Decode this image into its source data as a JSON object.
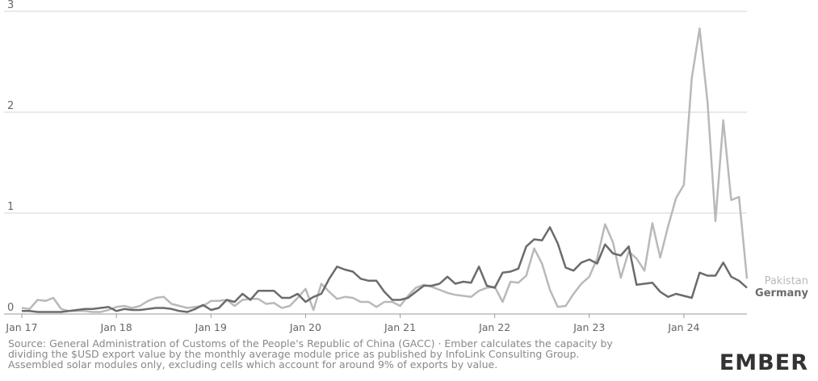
{
  "chart_data": {
    "type": "line",
    "categories": [
      "Jan 17",
      null,
      null,
      null,
      null,
      null,
      null,
      null,
      null,
      null,
      null,
      null,
      "Jan 18",
      null,
      null,
      null,
      null,
      null,
      null,
      null,
      null,
      null,
      null,
      null,
      "Jan 19",
      null,
      null,
      null,
      null,
      null,
      null,
      null,
      null,
      null,
      null,
      null,
      "Jan 20",
      null,
      null,
      null,
      null,
      null,
      null,
      null,
      null,
      null,
      null,
      null,
      "Jan 21",
      null,
      null,
      null,
      null,
      null,
      null,
      null,
      null,
      null,
      null,
      null,
      "Jan 22",
      null,
      null,
      null,
      null,
      null,
      null,
      null,
      null,
      null,
      null,
      null,
      "Jan 23",
      null,
      null,
      null,
      null,
      null,
      null,
      null,
      null,
      null,
      null,
      null,
      "Jan 24",
      null,
      null,
      null,
      null,
      null,
      null,
      null,
      null
    ],
    "series": [
      {
        "name": "Pakistan",
        "color": "#b9b9b9",
        "values": [
          0.06,
          0.05,
          0.14,
          0.13,
          0.16,
          0.05,
          0.03,
          0.03,
          0.03,
          0.02,
          0.02,
          0.04,
          0.07,
          0.08,
          0.06,
          0.08,
          0.13,
          0.16,
          0.17,
          0.1,
          0.08,
          0.06,
          0.07,
          0.08,
          0.13,
          0.13,
          0.14,
          0.08,
          0.14,
          0.15,
          0.15,
          0.1,
          0.11,
          0.06,
          0.08,
          0.16,
          0.25,
          0.04,
          0.3,
          0.22,
          0.15,
          0.17,
          0.16,
          0.12,
          0.12,
          0.07,
          0.12,
          0.12,
          0.08,
          0.18,
          0.26,
          0.29,
          0.27,
          0.24,
          0.21,
          0.19,
          0.18,
          0.17,
          0.23,
          0.26,
          0.27,
          0.12,
          0.32,
          0.31,
          0.38,
          0.65,
          0.5,
          0.24,
          0.07,
          0.08,
          0.2,
          0.3,
          0.37,
          0.55,
          0.89,
          0.71,
          0.36,
          0.62,
          0.55,
          0.43,
          0.9,
          0.56,
          0.87,
          1.15,
          1.28,
          2.34,
          2.83,
          2.1,
          0.92,
          1.92,
          1.13,
          1.16,
          0.35
        ]
      },
      {
        "name": "Germany",
        "color": "#6b6b6b",
        "values": [
          0.03,
          0.03,
          0.02,
          0.02,
          0.02,
          0.02,
          0.03,
          0.04,
          0.05,
          0.05,
          0.06,
          0.07,
          0.03,
          0.05,
          0.04,
          0.04,
          0.05,
          0.06,
          0.06,
          0.05,
          0.03,
          0.02,
          0.05,
          0.09,
          0.04,
          0.06,
          0.14,
          0.12,
          0.2,
          0.14,
          0.23,
          0.23,
          0.23,
          0.16,
          0.16,
          0.2,
          0.12,
          0.17,
          0.2,
          0.35,
          0.47,
          0.44,
          0.42,
          0.35,
          0.33,
          0.33,
          0.22,
          0.14,
          0.14,
          0.16,
          0.22,
          0.28,
          0.28,
          0.3,
          0.37,
          0.3,
          0.32,
          0.31,
          0.47,
          0.28,
          0.26,
          0.41,
          0.42,
          0.45,
          0.67,
          0.74,
          0.73,
          0.86,
          0.7,
          0.46,
          0.43,
          0.51,
          0.54,
          0.5,
          0.69,
          0.6,
          0.58,
          0.67,
          0.29,
          0.3,
          0.31,
          0.22,
          0.17,
          0.2,
          0.18,
          0.16,
          0.41,
          0.38,
          0.38,
          0.51,
          0.37,
          0.33,
          0.26
        ]
      }
    ],
    "ylim": [
      0,
      3
    ],
    "yticks": [
      0,
      1,
      2,
      3
    ],
    "grid": true,
    "source": [
      "Source: General Administration of Customs of the People's Republic of China (GACC) · Ember calculates the capacity by",
      "dividing the $USD export value by the monthly average module price as published by InfoLink Consulting Group.",
      "Assembled solar modules only, excluding cells which account for around 9% of exports by value."
    ],
    "logo": "EMBER"
  }
}
